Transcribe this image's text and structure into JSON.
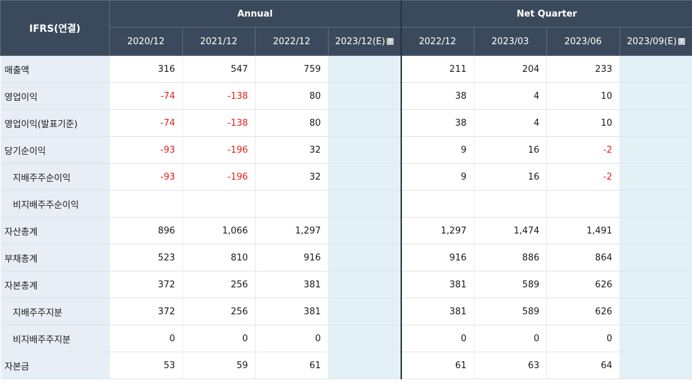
{
  "header": {
    "corner": "IFRS(연결)",
    "groups": {
      "annual": "Annual",
      "quarter": "Net Quarter"
    },
    "periods": [
      "2020/12",
      "2021/12",
      "2022/12",
      "2023/12(E)",
      "2022/12",
      "2023/03",
      "2023/06",
      "2023/09(E)"
    ]
  },
  "rows": [
    {
      "label": "매출액",
      "indent": false,
      "values": [
        "316",
        "547",
        "759",
        "",
        "211",
        "204",
        "233",
        ""
      ]
    },
    {
      "label": "영업이익",
      "indent": false,
      "values": [
        "-74",
        "-138",
        "80",
        "",
        "38",
        "4",
        "10",
        ""
      ]
    },
    {
      "label": "영업이익(발표기준)",
      "indent": false,
      "values": [
        "-74",
        "-138",
        "80",
        "",
        "38",
        "4",
        "10",
        ""
      ]
    },
    {
      "label": "당기순이익",
      "indent": false,
      "values": [
        "-93",
        "-196",
        "32",
        "",
        "9",
        "16",
        "-2",
        ""
      ]
    },
    {
      "label": "지배주주순이익",
      "indent": true,
      "values": [
        "-93",
        "-196",
        "32",
        "",
        "9",
        "16",
        "-2",
        ""
      ]
    },
    {
      "label": "비지배주주순이익",
      "indent": true,
      "values": [
        "",
        "",
        "",
        "",
        "",
        "",
        "",
        ""
      ]
    },
    {
      "label": "자산총계",
      "indent": false,
      "values": [
        "896",
        "1,066",
        "1,297",
        "",
        "1,297",
        "1,474",
        "1,491",
        ""
      ]
    },
    {
      "label": "부채총계",
      "indent": false,
      "values": [
        "523",
        "810",
        "916",
        "",
        "916",
        "886",
        "864",
        ""
      ]
    },
    {
      "label": "자본총계",
      "indent": false,
      "values": [
        "372",
        "256",
        "381",
        "",
        "381",
        "589",
        "626",
        ""
      ]
    },
    {
      "label": "지배주주지분",
      "indent": true,
      "values": [
        "372",
        "256",
        "381",
        "",
        "381",
        "589",
        "626",
        ""
      ]
    },
    {
      "label": "비지배주주지분",
      "indent": true,
      "values": [
        "0",
        "0",
        "0",
        "",
        "0",
        "0",
        "0",
        ""
      ]
    },
    {
      "label": "자본금",
      "indent": false,
      "values": [
        "53",
        "59",
        "61",
        "",
        "61",
        "63",
        "64",
        ""
      ]
    }
  ],
  "colors": {
    "header_bg": "#3a4a5c",
    "label_bg": "#e8eef5",
    "estimate_bg": "#e3f1f7",
    "negative": "#e0201c"
  }
}
